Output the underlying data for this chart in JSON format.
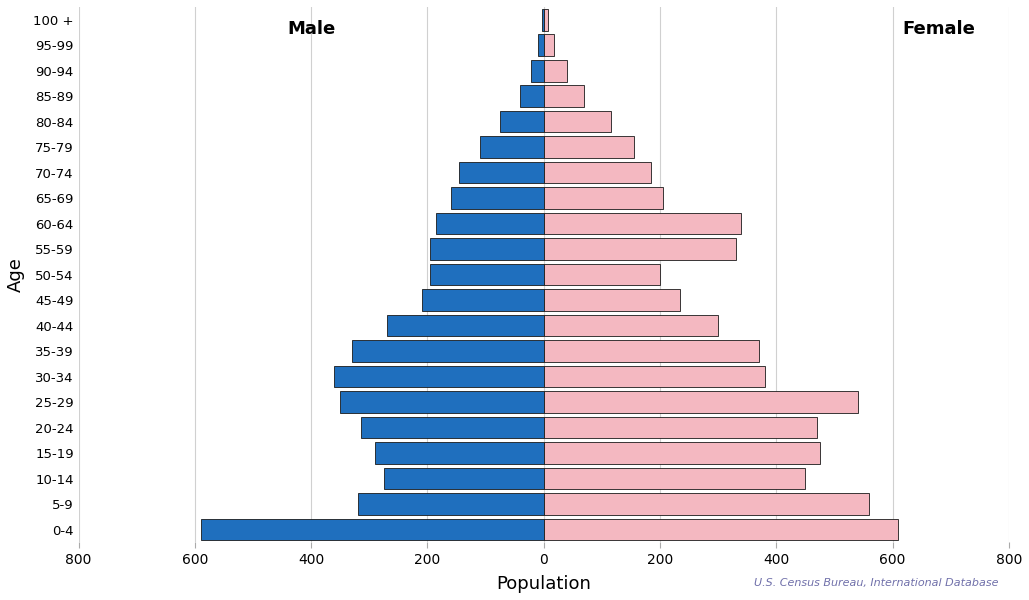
{
  "age_groups": [
    "0-4",
    "5-9",
    "10-14",
    "15-19",
    "20-24",
    "25-29",
    "30-34",
    "35-39",
    "40-44",
    "45-49",
    "50-54",
    "55-59",
    "60-64",
    "65-69",
    "70-74",
    "75-79",
    "80-84",
    "85-89",
    "90-94",
    "95-99",
    "100 +"
  ],
  "male": [
    590,
    320,
    275,
    290,
    315,
    350,
    360,
    330,
    270,
    210,
    195,
    195,
    185,
    160,
    145,
    110,
    75,
    40,
    22,
    10,
    3
  ],
  "female": [
    610,
    560,
    450,
    475,
    470,
    540,
    380,
    370,
    300,
    235,
    200,
    330,
    340,
    205,
    185,
    155,
    115,
    70,
    40,
    18,
    8
  ],
  "male_color": "#1f6fbe",
  "female_color": "#f4b8c1",
  "edge_color": "#1a1a1a",
  "background_color": "#ffffff",
  "xlabel": "Population",
  "ylabel": "Age",
  "male_label": "Male",
  "female_label": "Female",
  "xlim": [
    -800,
    800
  ],
  "xticks": [
    -800,
    -600,
    -400,
    -200,
    0,
    200,
    400,
    600,
    800
  ],
  "xtick_labels": [
    "800",
    "600",
    "400",
    "200",
    "0",
    "200",
    "400",
    "600",
    "800"
  ],
  "grid_color": "#d0d0d0",
  "annotation": "U.S. Census Bureau, International Database",
  "annotation_color": "#7070aa",
  "bar_height": 0.85
}
